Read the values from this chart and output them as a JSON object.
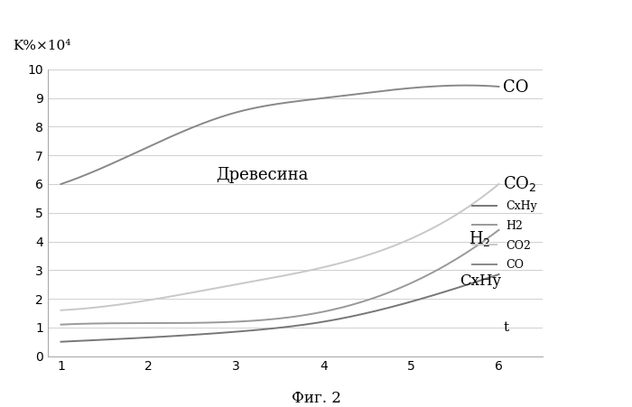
{
  "x": [
    1,
    2,
    3,
    4,
    5,
    6
  ],
  "CO": [
    6.0,
    7.3,
    8.5,
    9.0,
    9.35,
    9.4
  ],
  "CO2": [
    1.6,
    1.95,
    2.5,
    3.1,
    4.1,
    6.0
  ],
  "H2": [
    1.1,
    1.15,
    1.2,
    1.55,
    2.55,
    4.4
  ],
  "CxHy": [
    0.5,
    0.65,
    0.85,
    1.2,
    1.9,
    2.85
  ],
  "color_CO": "#888888",
  "color_CO2": "#c8c8c8",
  "color_H2": "#999999",
  "color_CxHy": "#777777",
  "ylabel": "K%×10⁴",
  "xlabel": "t",
  "caption": "Фиг. 2",
  "watermark": "Древесина",
  "legend_labels": [
    "CxHy",
    "H2",
    "CO2",
    "CO"
  ],
  "ylim": [
    0,
    10
  ],
  "xlim": [
    1,
    6
  ],
  "yticks": [
    0,
    1,
    2,
    3,
    4,
    5,
    6,
    7,
    8,
    9,
    10
  ],
  "xticks": [
    1,
    2,
    3,
    4,
    5,
    6
  ],
  "ann_CO_x": 6.05,
  "ann_CO_y": 9.38,
  "ann_CO2_x": 6.05,
  "ann_CO2_y": 6.0,
  "ann_H2_x": 5.65,
  "ann_H2_y": 4.1,
  "ann_CxHy_x": 5.55,
  "ann_CxHy_y": 2.6,
  "ann_t_x": 6.05,
  "ann_t_y": 1.0
}
